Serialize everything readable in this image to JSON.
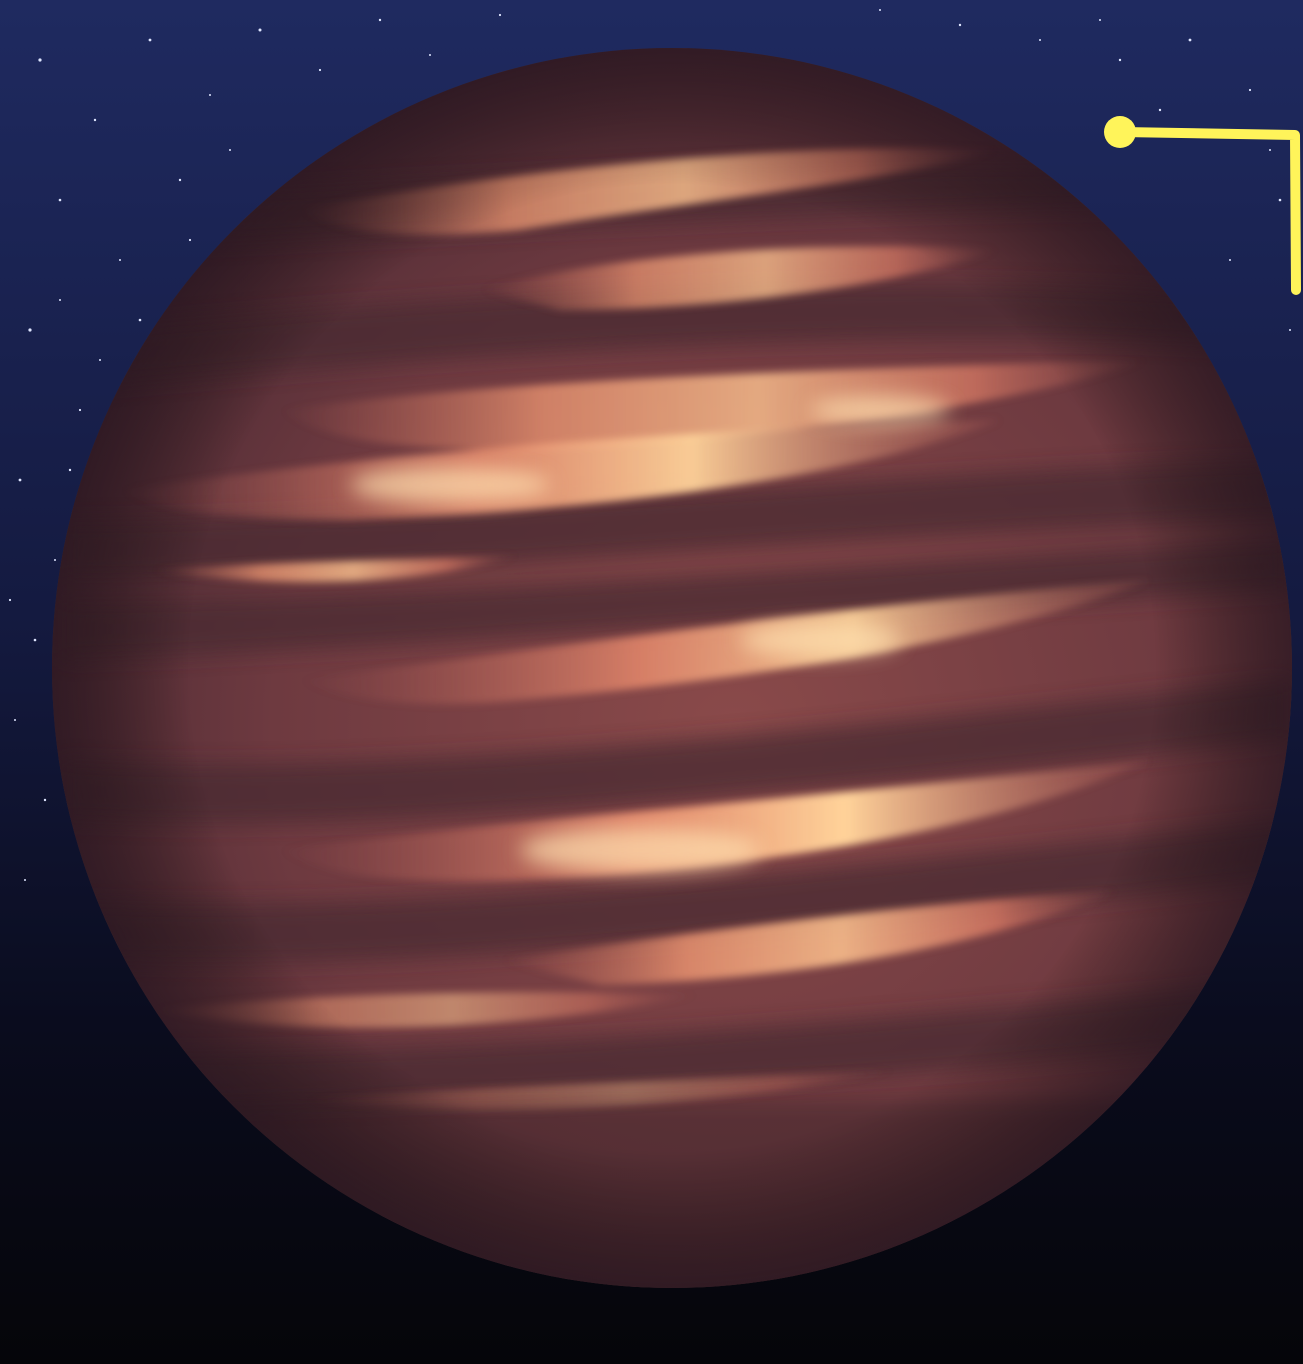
{
  "scene": {
    "subject": "brown-dwarf-planet",
    "colors": {
      "sky_top": "#1b2456",
      "sky_bottom": "#07070f",
      "planet_base": "#6b3a3e",
      "band_dark": "#4a2a30",
      "band_glow": "#f0a27a",
      "band_hot": "#ffd39a",
      "annotation": "#fff45a"
    },
    "annotation": {
      "icon": "callout-pointer-icon"
    }
  }
}
